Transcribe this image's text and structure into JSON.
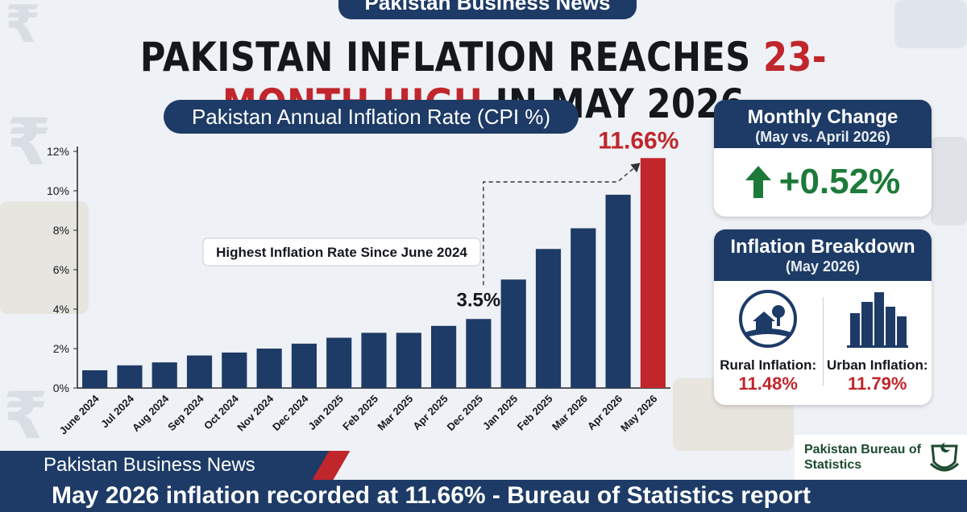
{
  "top_badge": "Pakistan Business News",
  "headline": {
    "part1": "PAKISTAN INFLATION REACHES ",
    "highlight": "23-MONTH HIGH",
    "part2": " IN MAY 2026"
  },
  "colors": {
    "navy": "#1d3b66",
    "red": "#c0262c",
    "green": "#1d7a3a"
  },
  "chart_data": {
    "type": "bar",
    "title": "Pakistan Annual Inflation Rate (CPI %)",
    "categories": [
      "June 2024",
      "Jul 2024",
      "Aug 2024",
      "Sep 2024",
      "Oct 2024",
      "Nov 2024",
      "Dec 2024",
      "Jan 2025",
      "Feb 2025",
      "Mar 2025",
      "Apr 2025",
      "Dec 2025",
      "Jan 2025",
      "Feb 2025",
      "Mar 2026",
      "Apr 2026",
      "May 2026"
    ],
    "values": [
      0.9,
      1.15,
      1.3,
      1.65,
      1.8,
      2.0,
      2.25,
      2.55,
      2.8,
      2.8,
      3.15,
      3.5,
      5.5,
      7.05,
      8.1,
      9.8,
      11.66
    ],
    "highlight_index": 16,
    "ylim": [
      0,
      12
    ],
    "yticks": [
      "0%",
      "2%",
      "4%",
      "6%",
      "8%",
      "10%",
      "12%"
    ],
    "annotations": {
      "callout": "Highest Inflation Rate Since June 2024",
      "label_3_5": "3.5%",
      "label_peak": "11.66%"
    }
  },
  "monthly_change": {
    "title": "Monthly Change",
    "subtitle": "(May vs. April 2026)",
    "value": "+0.52%"
  },
  "breakdown": {
    "title": "Inflation Breakdown",
    "subtitle": "(May 2026)",
    "rural_label": "Rural Inflation:",
    "rural_value": "11.48%",
    "urban_label": "Urban Inflation:",
    "urban_value": "11.79%"
  },
  "footer": {
    "source": "Pakistan Business News",
    "ticker": "May 2026 inflation recorded at 11.66% - Bureau of Statistics report"
  },
  "pbs": {
    "line1": "Pakistan Bureau of",
    "line2": "Statistics"
  }
}
